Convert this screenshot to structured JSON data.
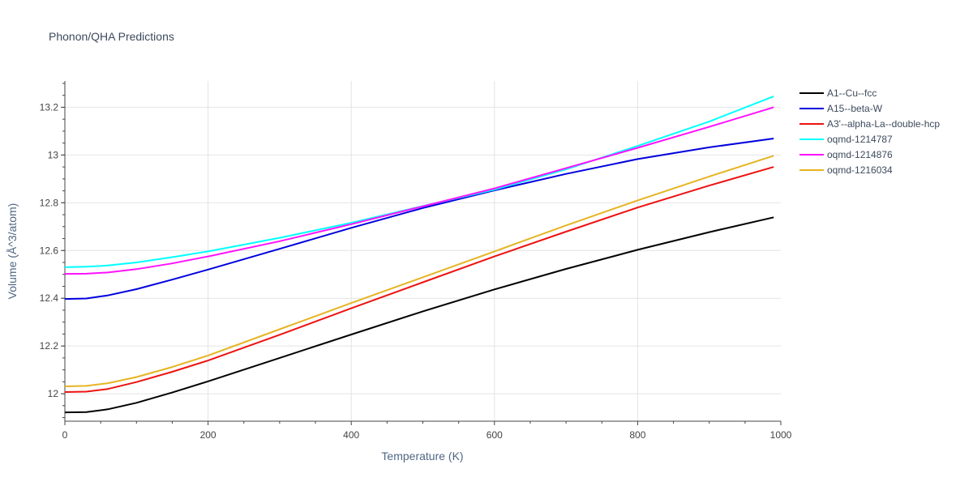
{
  "chart_data": {
    "type": "line",
    "title": "Phonon/QHA Predictions",
    "xlabel": "Temperature (K)",
    "ylabel": "Volume (Å^3/atom)",
    "xlim": [
      0,
      1000
    ],
    "ylim": [
      11.885,
      13.31
    ],
    "x_ticks": [
      0,
      200,
      400,
      600,
      800,
      1000
    ],
    "x_tick_labels": [
      "0",
      "200",
      "400",
      "600",
      "800",
      "1000"
    ],
    "y_ticks": [
      12,
      12.2,
      12.4,
      12.6,
      12.8,
      13,
      13.2
    ],
    "y_tick_labels": [
      "12",
      "12.2",
      "12.4",
      "12.6",
      "12.8",
      "13",
      "13.2"
    ],
    "grid": true,
    "legend_position": "top-right",
    "series": [
      {
        "name": "A1--Cu--fcc",
        "color": "#000000",
        "x": [
          0,
          30,
          60,
          100,
          150,
          200,
          300,
          400,
          500,
          600,
          700,
          800,
          900,
          990
        ],
        "y": [
          11.922,
          11.923,
          11.935,
          11.962,
          12.005,
          12.052,
          12.15,
          12.248,
          12.345,
          12.437,
          12.523,
          12.603,
          12.677,
          12.739
        ]
      },
      {
        "name": "A15--beta-W",
        "color": "#0000dd",
        "x": [
          0,
          30,
          60,
          100,
          150,
          200,
          300,
          400,
          500,
          600,
          700,
          800,
          900,
          990
        ],
        "y": [
          12.397,
          12.399,
          12.412,
          12.438,
          12.478,
          12.52,
          12.607,
          12.695,
          12.778,
          12.852,
          12.921,
          12.983,
          13.032,
          13.069
        ]
      },
      {
        "name": "A3'--alpha-La--double-hcp",
        "color": "#ee1111",
        "x": [
          0,
          30,
          60,
          100,
          150,
          200,
          300,
          400,
          500,
          600,
          700,
          800,
          900,
          990
        ],
        "y": [
          12.007,
          12.009,
          12.02,
          12.049,
          12.092,
          12.139,
          12.247,
          12.358,
          12.467,
          12.575,
          12.679,
          12.78,
          12.872,
          12.95
        ]
      },
      {
        "name": "oqmd-1214787",
        "color": "#00ffff",
        "x": [
          0,
          30,
          60,
          100,
          150,
          200,
          300,
          400,
          500,
          600,
          700,
          800,
          900,
          990
        ],
        "y": [
          12.53,
          12.532,
          12.537,
          12.55,
          12.572,
          12.596,
          12.653,
          12.716,
          12.786,
          12.855,
          12.94,
          13.038,
          13.14,
          13.246
        ]
      },
      {
        "name": "oqmd-1214876",
        "color": "#ff11ff",
        "x": [
          0,
          30,
          60,
          100,
          150,
          200,
          300,
          400,
          500,
          600,
          700,
          800,
          900,
          990
        ],
        "y": [
          12.502,
          12.503,
          12.508,
          12.522,
          12.546,
          12.575,
          12.639,
          12.71,
          12.785,
          12.86,
          12.945,
          13.03,
          13.118,
          13.2
        ]
      },
      {
        "name": "oqmd-1216034",
        "color": "#e6b422",
        "x": [
          0,
          30,
          60,
          100,
          150,
          200,
          300,
          400,
          500,
          600,
          700,
          800,
          900,
          990
        ],
        "y": [
          12.031,
          12.033,
          12.044,
          12.07,
          12.112,
          12.16,
          12.27,
          12.38,
          12.488,
          12.596,
          12.705,
          12.81,
          12.91,
          12.997
        ]
      }
    ]
  }
}
